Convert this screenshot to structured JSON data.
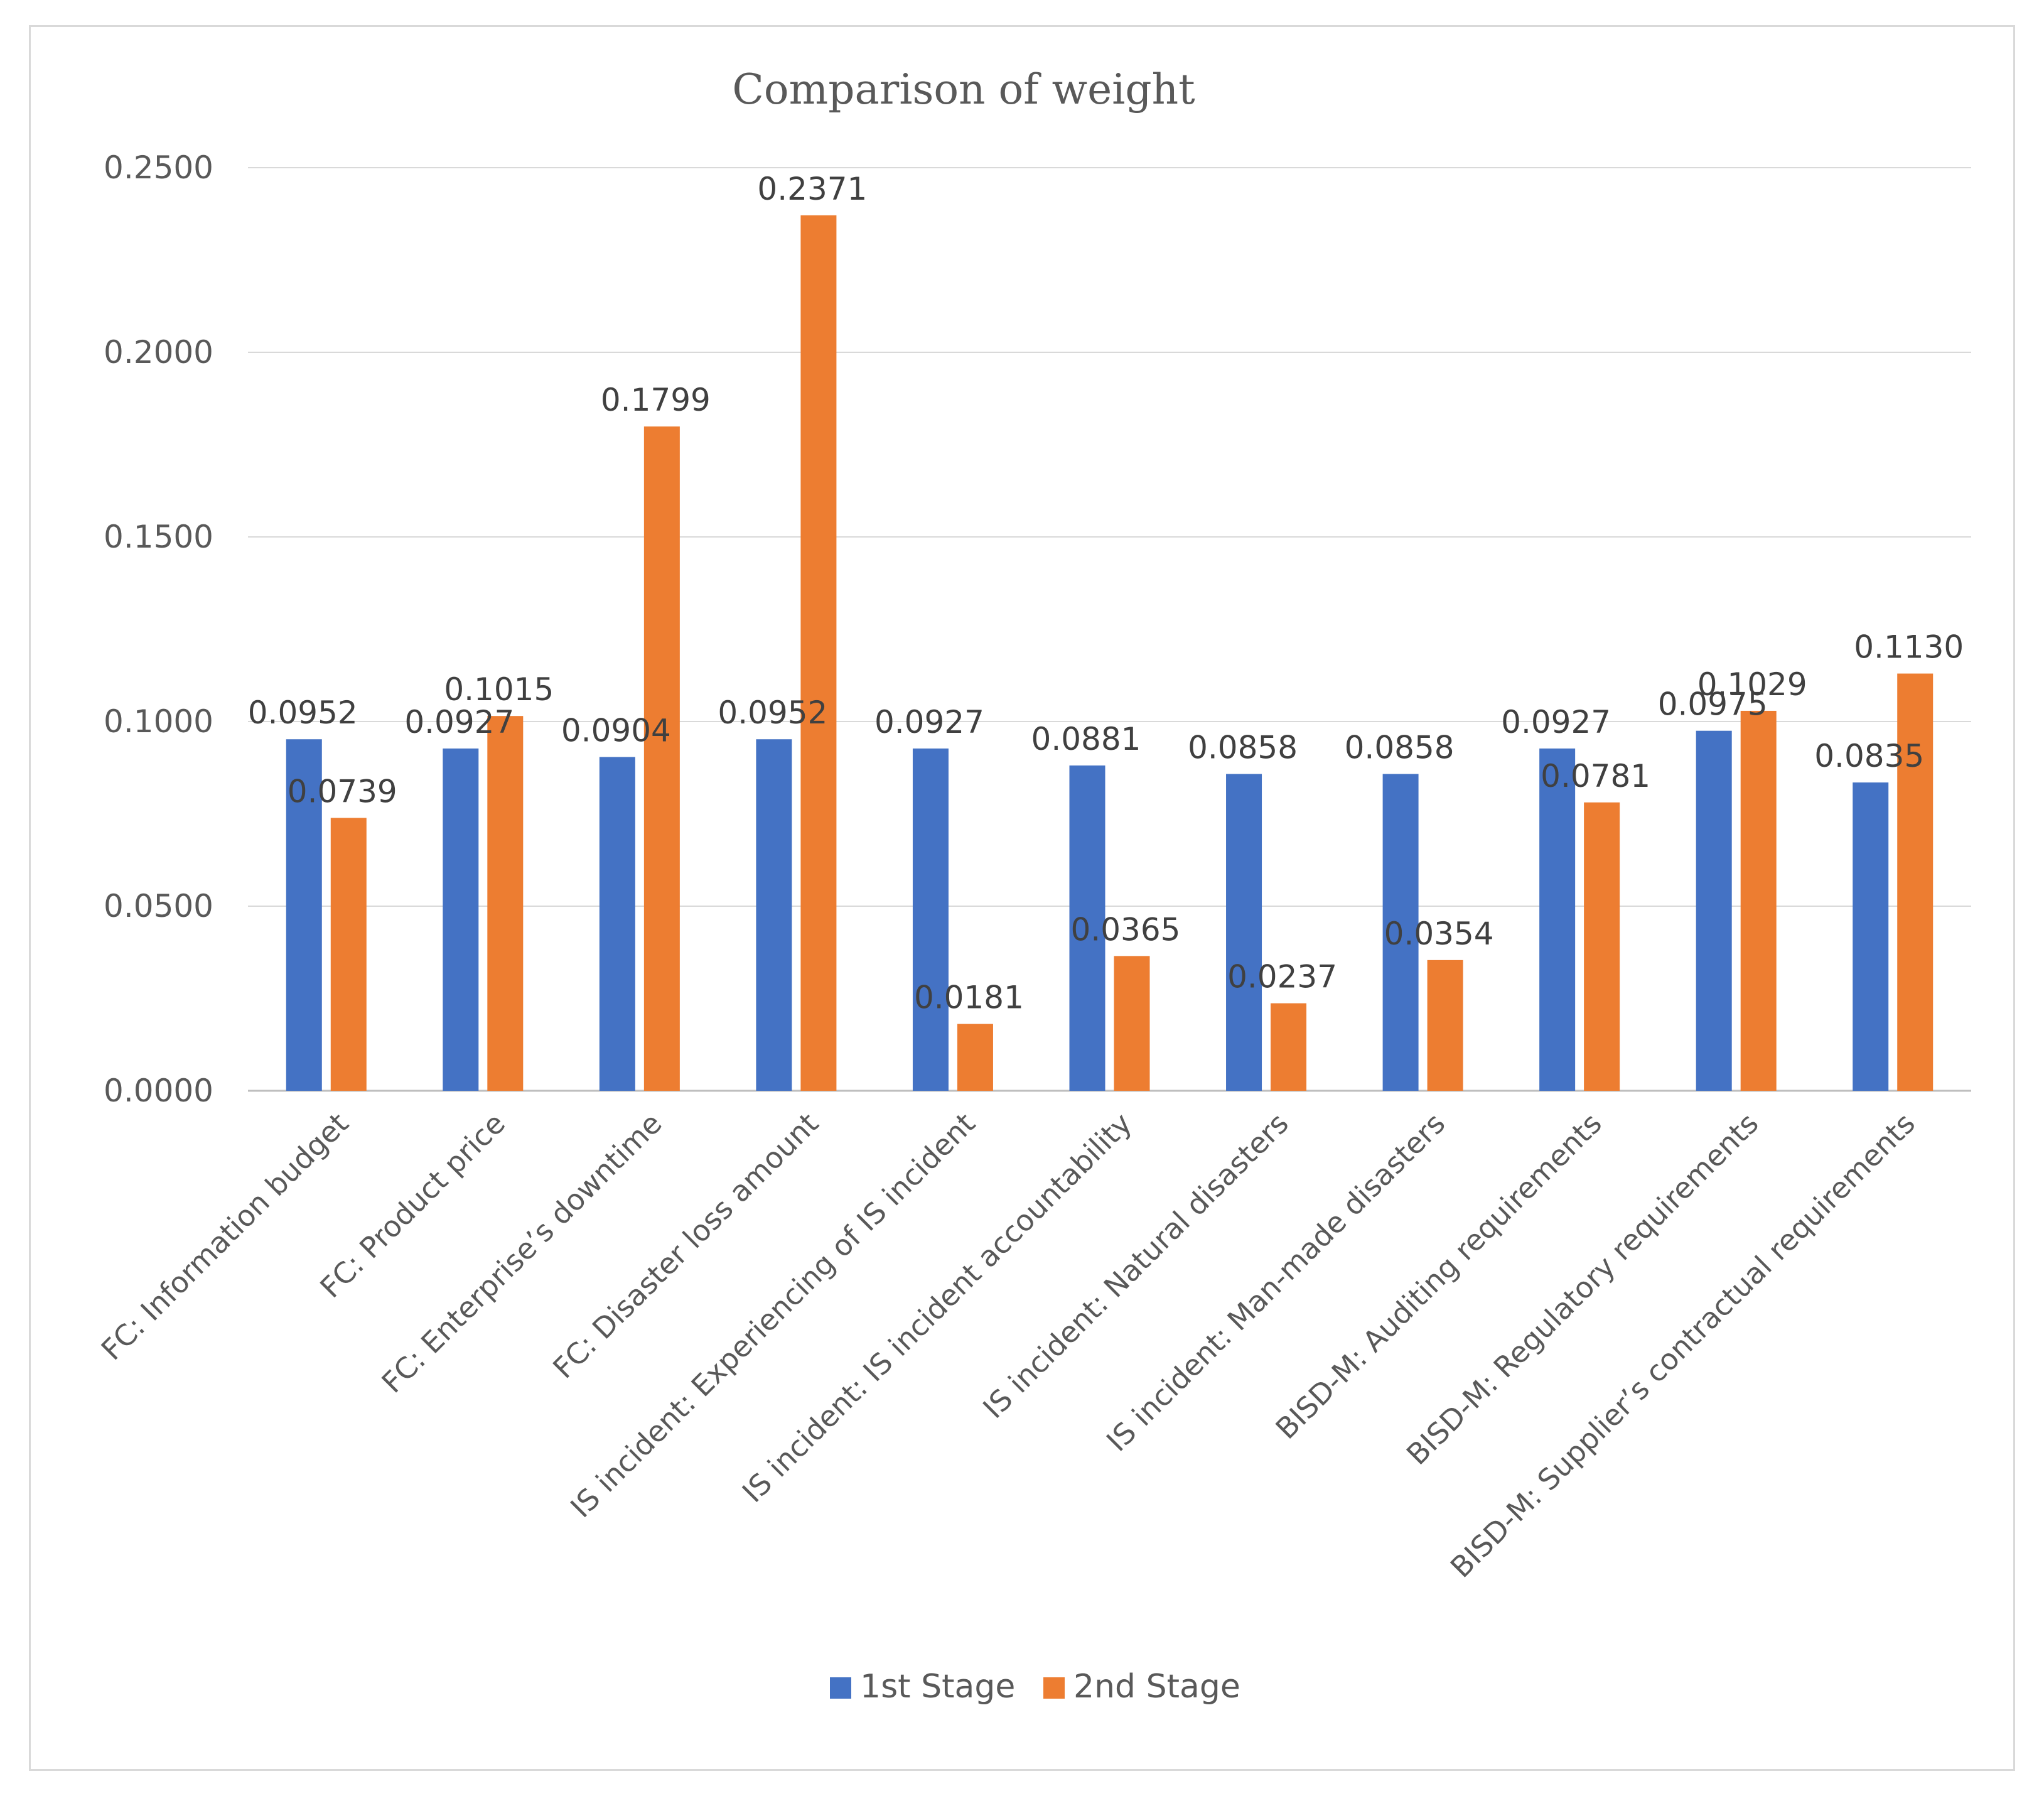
{
  "chart_data": {
    "type": "bar",
    "title": "Comparison of weight",
    "xlabel": "",
    "ylabel": "",
    "ylim": [
      0,
      0.25
    ],
    "yticks": [
      "0.0000",
      "0.0500",
      "0.1000",
      "0.1500",
      "0.2000",
      "0.2500"
    ],
    "grid": true,
    "legend_position": "bottom",
    "categories": [
      "FC: Information budget",
      "FC: Product price",
      "FC: Enterprise’s downtime",
      "FC: Disaster loss amount",
      "IS incident: Experiencing of IS incident",
      "IS incident: IS incident accountability",
      "IS incident: Natural disasters",
      "IS incident: Man-made disasters",
      "BISD-M: Auditing requirements",
      "BISD-M: Regulatory requirements",
      "BISD-M: Supplier’s contractual requirements"
    ],
    "series": [
      {
        "name": "1st Stage",
        "color": "#4472c4",
        "values": [
          0.0952,
          0.0927,
          0.0904,
          0.0952,
          0.0927,
          0.0881,
          0.0858,
          0.0858,
          0.0927,
          0.0975,
          0.0835
        ],
        "labels": [
          "0.0952",
          "0.0927",
          "0.0904",
          "0.0952",
          "0.0927",
          "0.0881",
          "0.0858",
          "0.0858",
          "0.0927",
          "0.0975",
          "0.0835"
        ]
      },
      {
        "name": "2nd Stage",
        "color": "#ed7d31",
        "values": [
          0.0739,
          0.1015,
          0.1799,
          0.2371,
          0.0181,
          0.0365,
          0.0237,
          0.0354,
          0.0781,
          0.1029,
          0.113
        ],
        "labels": [
          "0.0739",
          "0.1015",
          "0.1799",
          "0.2371",
          "0.0181",
          "0.0365",
          "0.0237",
          "0.0354",
          "0.0781",
          "0.1029",
          "0.1130"
        ]
      }
    ]
  }
}
